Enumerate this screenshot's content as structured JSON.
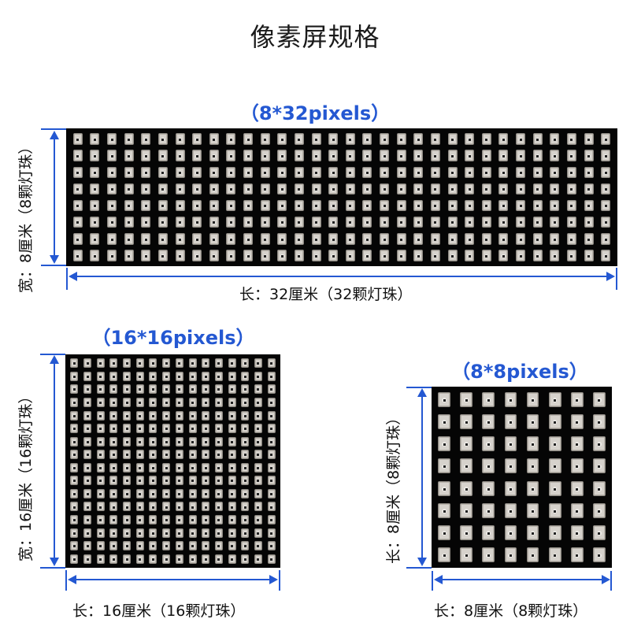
{
  "title": "像素屏规格",
  "accent_color": "#2458d2",
  "panels": [
    {
      "id": "8x32",
      "pixels_label": "（8*32pixels）",
      "rows": 8,
      "cols": 32,
      "width_label": "宽：8厘米（8颗灯珠）",
      "length_label": "长：32厘米（32颗灯珠）"
    },
    {
      "id": "16x16",
      "pixels_label": "（16*16pixels）",
      "rows": 16,
      "cols": 16,
      "width_label": "宽：16厘米（16颗灯珠）",
      "length_label": "长：16厘米（16颗灯珠）"
    },
    {
      "id": "8x8",
      "pixels_label": "（8*8pixels）",
      "rows": 8,
      "cols": 8,
      "width_label": "长：8厘米（8颗灯珠）",
      "length_label": "长：8厘米（8颗灯珠）"
    }
  ]
}
